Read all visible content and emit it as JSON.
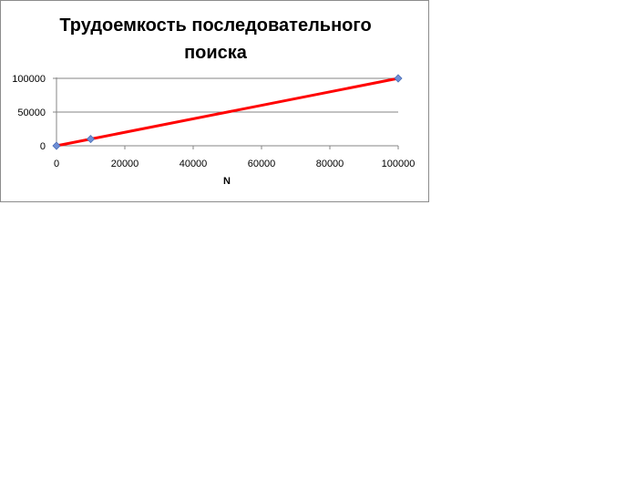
{
  "chart_data": {
    "type": "scatter",
    "title": "Трудоемкость последовательного поиска",
    "title_lines": [
      "Трудоемкость последовательного",
      "поиска"
    ],
    "xlabel": "N",
    "ylabel": "",
    "xlim": [
      0,
      100000
    ],
    "ylim": [
      0,
      100000
    ],
    "x_ticks": [
      "0",
      "20000",
      "40000",
      "60000",
      "80000",
      "100000"
    ],
    "y_ticks": [
      "0",
      "50000",
      "100000"
    ],
    "grid": true,
    "legend": "none",
    "series": [
      {
        "x": [
          0,
          10000,
          100000
        ],
        "y": [
          0,
          10000,
          100000
        ],
        "line_color": "#ff0000",
        "marker_color": "#6f8fd6",
        "marker": "diamond"
      }
    ]
  }
}
